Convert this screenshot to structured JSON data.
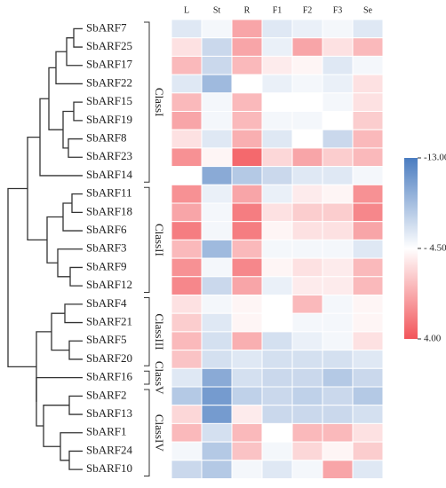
{
  "chart_data": {
    "type": "heatmap",
    "columns": [
      "L",
      "St",
      "R",
      "F1",
      "F2",
      "F3",
      "Se"
    ],
    "rows": [
      "SbARF7",
      "SbARF25",
      "SbARF17",
      "SbARF22",
      "SbARF15",
      "SbARF19",
      "SbARF8",
      "SbARF23",
      "SbARF14",
      "SbARF11",
      "SbARF18",
      "SbARF6",
      "SbARF3",
      "SbARF9",
      "SbARF12",
      "SbARF4",
      "SbARF21",
      "SbARF5",
      "SbARF20",
      "SbARF16",
      "SbARF2",
      "SbARF13",
      "SbARF1",
      "SbARF24",
      "SbARF10"
    ],
    "values": [
      [
        -6,
        -5,
        0,
        -6,
        -5.5,
        -5,
        -6
      ],
      [
        -3,
        -7,
        0,
        -5.5,
        0,
        -3,
        -1
      ],
      [
        -1,
        -7,
        -1,
        -3.5,
        -4,
        -6,
        -5
      ],
      [
        -6,
        -9,
        -4.5,
        -5.5,
        -5,
        -5.5,
        -3
      ],
      [
        -1,
        -5,
        -1,
        -4.5,
        -4.5,
        -5,
        -3
      ],
      [
        0,
        -5,
        -1,
        -5,
        -5,
        -4.5,
        -2
      ],
      [
        -3,
        -6,
        -0.5,
        -6,
        -4.5,
        -7,
        -1
      ],
      [
        1,
        -4,
        3,
        -2.5,
        0,
        -2,
        -1
      ],
      [
        -4.5,
        -10,
        -8,
        -7,
        -6,
        -6,
        -5
      ],
      [
        1,
        -5.5,
        0,
        -5.5,
        -3.5,
        -4,
        1
      ],
      [
        0,
        -5,
        2,
        -3,
        -2,
        -2,
        1.5
      ],
      [
        2,
        -5,
        2,
        -4,
        -3,
        -3,
        0
      ],
      [
        -1,
        -9,
        -1,
        -5,
        -5,
        -5,
        -6
      ],
      [
        1,
        -5,
        1.5,
        -4,
        -3,
        -3.5,
        -1
      ],
      [
        1.5,
        -7,
        0,
        -5.5,
        -3.5,
        -3.5,
        -1
      ],
      [
        -3,
        -5,
        -4,
        -4.5,
        -1,
        -5,
        -4
      ],
      [
        -2,
        -6,
        -4,
        -4.5,
        -5,
        -5,
        -4
      ],
      [
        -1,
        -6.5,
        -0.5,
        -6.5,
        -5.5,
        -5,
        -3
      ],
      [
        -1.5,
        -6.5,
        -6,
        -6.5,
        -6.5,
        -6.5,
        -6
      ],
      [
        -6,
        -10,
        -6.5,
        -7,
        -7,
        -8,
        -7
      ],
      [
        -8,
        -11,
        -7.5,
        -7,
        -7.5,
        -7,
        -8
      ],
      [
        -2.5,
        -11,
        -3.5,
        -7,
        -7,
        -7,
        -6.5
      ],
      [
        -1,
        -6.5,
        -1,
        -4.5,
        -1,
        -1,
        -3
      ],
      [
        -5,
        -8,
        -1.5,
        -5,
        -2.5,
        -4,
        -2
      ],
      [
        -7,
        -8,
        -5,
        -6,
        -5,
        0,
        -6
      ]
    ],
    "classes": [
      "ClassI",
      "ClassII",
      "ClassIII",
      "ClassV",
      "ClassIV"
    ],
    "zlim": [
      -13,
      4
    ],
    "zticks": [
      {
        "value": -13,
        "label": "-13.00"
      },
      {
        "value": -4.5,
        "label": "- 4.50"
      },
      {
        "value": 4,
        "label": "4.00"
      }
    ],
    "colors": [
      "#4a7cc0",
      "#ffffff",
      "#f2555a"
    ]
  }
}
